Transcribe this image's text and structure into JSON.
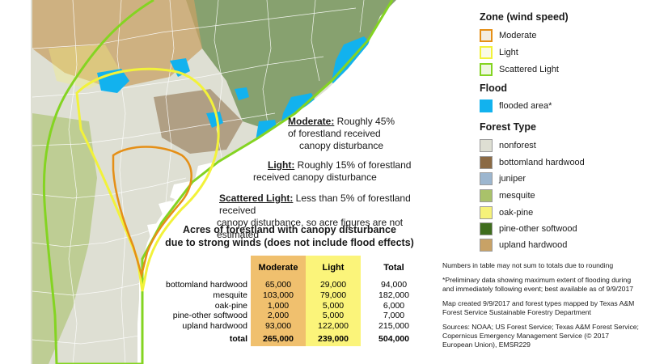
{
  "colors": {
    "nonforest": "#dedfd3",
    "bottomland_hardwood": "#8b6a44",
    "juniper": "#9cb6cf",
    "mesquite": "#a9c26a",
    "oak_pine": "#f6f27a",
    "pine_other_softwood": "#3f6d1e",
    "upland_hardwood": "#c8a266",
    "flooded": "#12b2ee",
    "zone_moderate": "#e58f16",
    "zone_light": "#f2f23a",
    "zone_scattered_light": "#84d422",
    "water": "#ffffff"
  },
  "legend": {
    "zone_title": "Zone (wind speed)",
    "zones": [
      {
        "label": "Moderate",
        "color": "#e58f16"
      },
      {
        "label": "Light",
        "color": "#f2f23a"
      },
      {
        "label": "Scattered Light",
        "color": "#84d422"
      }
    ],
    "flood_title": "Flood",
    "flood_label": "flooded area*",
    "forest_title": "Forest Type",
    "forest_types": [
      {
        "label": "nonforest",
        "color": "#dedfd3"
      },
      {
        "label": "bottomland hardwood",
        "color": "#8b6a44"
      },
      {
        "label": "juniper",
        "color": "#9cb6cf"
      },
      {
        "label": "mesquite",
        "color": "#a9c26a"
      },
      {
        "label": "oak-pine",
        "color": "#f6f27a"
      },
      {
        "label": "pine-other softwood",
        "color": "#3f6d1e"
      },
      {
        "label": "upland hardwood",
        "color": "#c8a266"
      }
    ]
  },
  "notes": {
    "moderate": {
      "label": "Moderate:",
      "text": " Roughly 45%",
      "line2": "of forestland received",
      "line3": "canopy disturbance"
    },
    "light": {
      "label": "Light:",
      "text": " Roughly 15% of forestland",
      "line2": "received canopy disturbance"
    },
    "scattered": {
      "label": "Scattered Light:",
      "text": " Less than 5% of forestland received",
      "line2": "canopy disturbance, so acre figures are not estimated"
    }
  },
  "table": {
    "title_line1": "Acres of forestland with canopy disturbance",
    "title_line2": "due to strong winds (does not include flood effects)",
    "headers": [
      "",
      "Moderate",
      "Light",
      "Total"
    ],
    "rows": [
      [
        "bottomland hardwood",
        "65,000",
        "29,000",
        "94,000"
      ],
      [
        "mesquite",
        "103,000",
        "79,000",
        "182,000"
      ],
      [
        "oak-pine",
        "1,000",
        "5,000",
        "6,000"
      ],
      [
        "pine-other softwood",
        "2,000",
        "5,000",
        "7,000"
      ],
      [
        "upland hardwood",
        "93,000",
        "122,000",
        "215,000"
      ]
    ],
    "total": [
      "total",
      "265,000",
      "239,000",
      "504,000"
    ]
  },
  "footnotes": [
    "Numbers in table may not sum to totals due to rounding",
    "*Preliminary data showing maximum extent of flooding during and immediately following event; best available as of 9/9/2017",
    "Map created 9/9/2017 and forest types mapped by Texas A&M Forest Service Sustainable Forestry Department",
    "Sources:  NOAA; US Forest Service; Texas A&M Forest Service; Copernicus Emergency Management Service (© 2017 European Union), EMSR229"
  ]
}
